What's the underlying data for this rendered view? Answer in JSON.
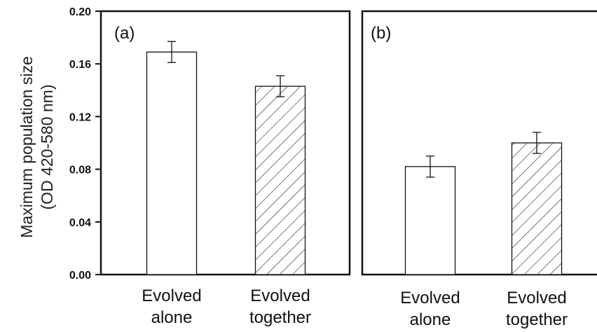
{
  "chart_data": [
    {
      "type": "bar",
      "panel_label": "(a)",
      "categories": [
        [
          "Evolved",
          "alone"
        ],
        [
          "Evolved",
          "together"
        ]
      ],
      "values": [
        0.169,
        0.143
      ],
      "errors": [
        0.008,
        0.008
      ],
      "patterns": [
        "none",
        "hatched"
      ],
      "ylabel": [
        "Maximum population size",
        "(OD 420-580 nm)"
      ],
      "ylim": [
        0,
        0.2
      ],
      "yticks": [
        "0.00",
        "0.04",
        "0.08",
        "0.12",
        "0.16",
        "0.20"
      ],
      "ytick_values": [
        0,
        0.04,
        0.08,
        0.12,
        0.16,
        0.2
      ]
    },
    {
      "type": "bar",
      "panel_label": "(b)",
      "categories": [
        [
          "Evolved",
          "alone"
        ],
        [
          "Evolved",
          "together"
        ]
      ],
      "values": [
        0.082,
        0.1
      ],
      "errors": [
        0.008,
        0.008
      ],
      "patterns": [
        "none",
        "hatched"
      ],
      "ylim": [
        0,
        0.2
      ]
    }
  ]
}
